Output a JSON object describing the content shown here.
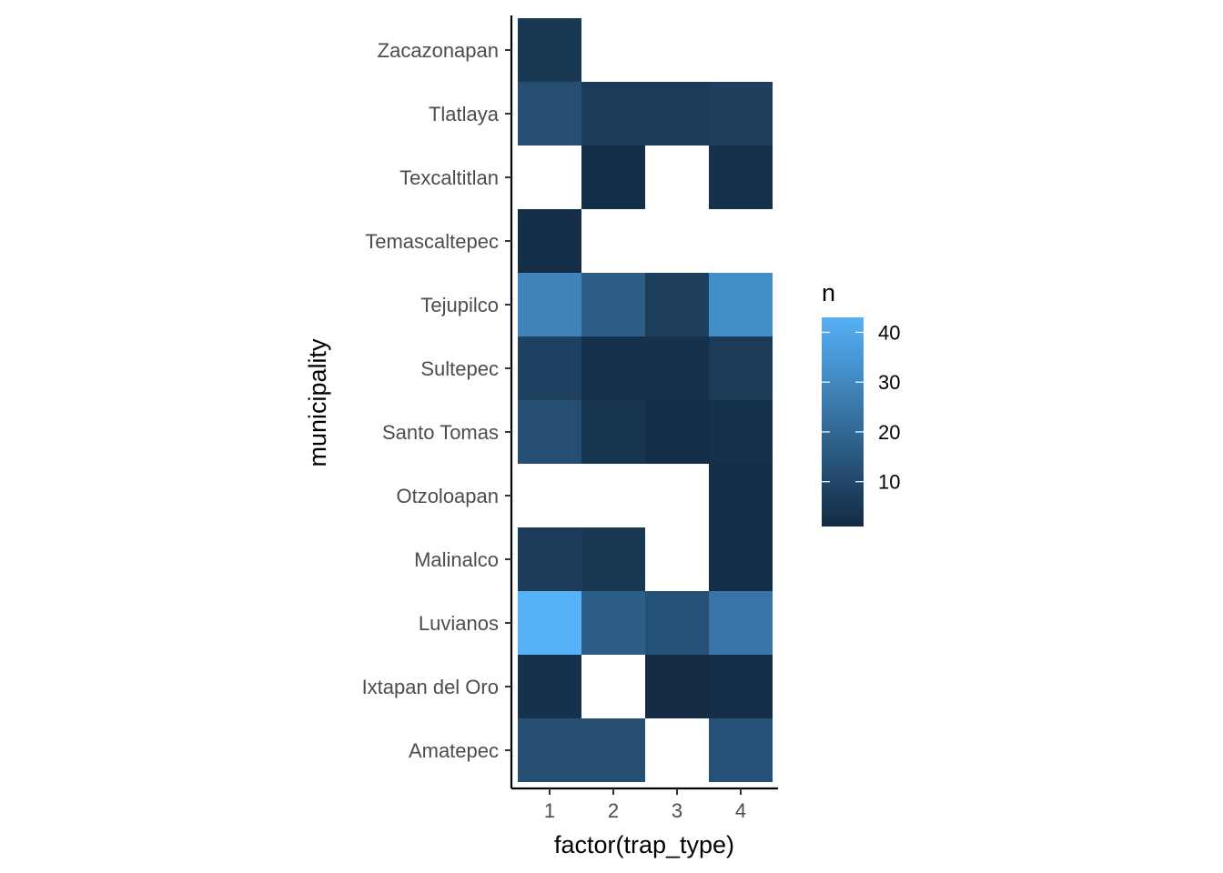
{
  "chart_data": {
    "type": "heatmap",
    "title": "",
    "xlabel": "factor(trap_type)",
    "ylabel": "municipality",
    "x_categories": [
      "1",
      "2",
      "3",
      "4"
    ],
    "y_categories": [
      "Amatepec",
      "Ixtapan del Oro",
      "Luvianos",
      "Malinalco",
      "Otzoloapan",
      "Santo Tomas",
      "Sultepec",
      "Tejupilco",
      "Temascaltepec",
      "Texcaltitlan",
      "Tlatlaya",
      "Zacazonapan"
    ],
    "values": [
      [
        12,
        12,
        null,
        13
      ],
      [
        3,
        null,
        1,
        2
      ],
      [
        43,
        17,
        13,
        24
      ],
      [
        6,
        5,
        null,
        2
      ],
      [
        null,
        null,
        null,
        2
      ],
      [
        12,
        4,
        2,
        3
      ],
      [
        8,
        3,
        3,
        6
      ],
      [
        29,
        17,
        7,
        32
      ],
      [
        2,
        null,
        null,
        null
      ],
      [
        null,
        2,
        null,
        3
      ],
      [
        12,
        6,
        6,
        7
      ],
      [
        5,
        null,
        null,
        null
      ]
    ],
    "legend": {
      "title": "n",
      "ticks": [
        10,
        20,
        30,
        40
      ],
      "min": 1,
      "max": 43,
      "low_color": "#132B43",
      "high_color": "#56B1F7",
      "placement": "right"
    },
    "grid": false
  }
}
